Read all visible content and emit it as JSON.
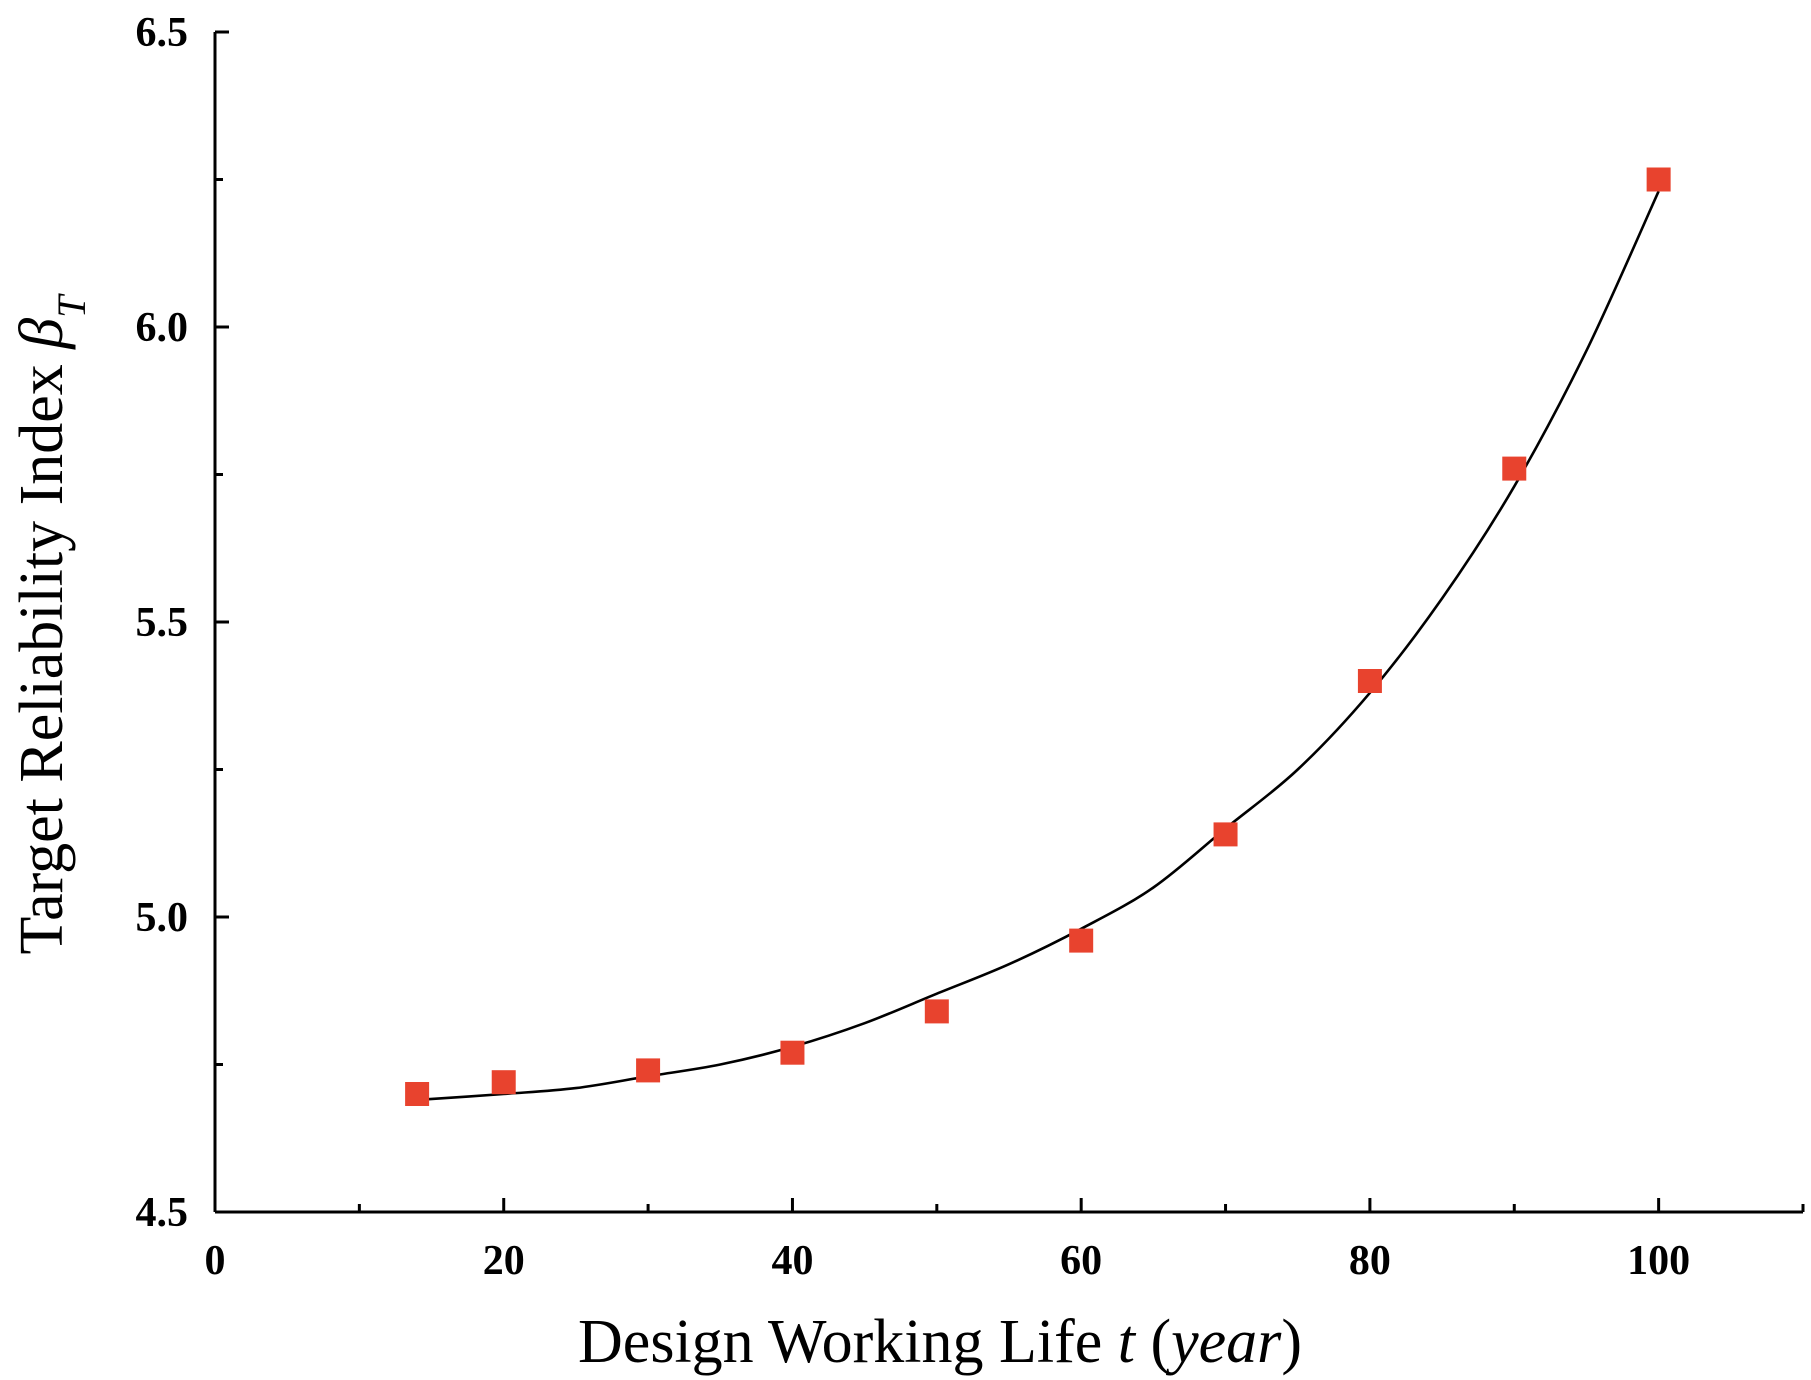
{
  "chart_data": {
    "type": "scatter",
    "xlabel": {
      "main": "Design Working Life ",
      "var": "t",
      "unit_open": " (",
      "unit": "year",
      "unit_close": ")"
    },
    "ylabel": {
      "main": "Target Reliability Index ",
      "var": "β",
      "sub": "T"
    },
    "xlim": [
      0,
      110
    ],
    "ylim": [
      4.5,
      6.5
    ],
    "x_ticks": [
      0,
      20,
      40,
      60,
      80,
      100
    ],
    "x_tick_labels": [
      "0",
      "20",
      "40",
      "60",
      "80",
      "100"
    ],
    "x_minor_ticks": [
      10,
      30,
      50,
      70,
      90,
      110
    ],
    "y_ticks": [
      4.5,
      5.0,
      5.5,
      6.0,
      6.5
    ],
    "y_tick_labels": [
      "4.5",
      "5.0",
      "5.5",
      "6.0",
      "6.5"
    ],
    "y_minor_ticks": [
      4.75,
      5.25,
      5.75,
      6.25
    ],
    "grid": false,
    "series": [
      {
        "kind": "points",
        "marker": "square",
        "color": "#e8432e",
        "x": [
          14,
          20,
          30,
          40,
          50,
          60,
          70,
          80,
          90,
          100
        ],
        "y": [
          4.7,
          4.72,
          4.74,
          4.77,
          4.84,
          4.96,
          5.14,
          5.4,
          5.76,
          6.25
        ]
      },
      {
        "kind": "fit-curve",
        "color": "#000000",
        "x": [
          14,
          20,
          25,
          30,
          35,
          40,
          45,
          50,
          55,
          60,
          65,
          70,
          75,
          80,
          85,
          90,
          95,
          100
        ],
        "y": [
          4.69,
          4.7,
          4.71,
          4.73,
          4.75,
          4.78,
          4.82,
          4.87,
          4.92,
          4.98,
          5.05,
          5.15,
          5.25,
          5.38,
          5.54,
          5.73,
          5.96,
          6.23
        ]
      }
    ]
  }
}
